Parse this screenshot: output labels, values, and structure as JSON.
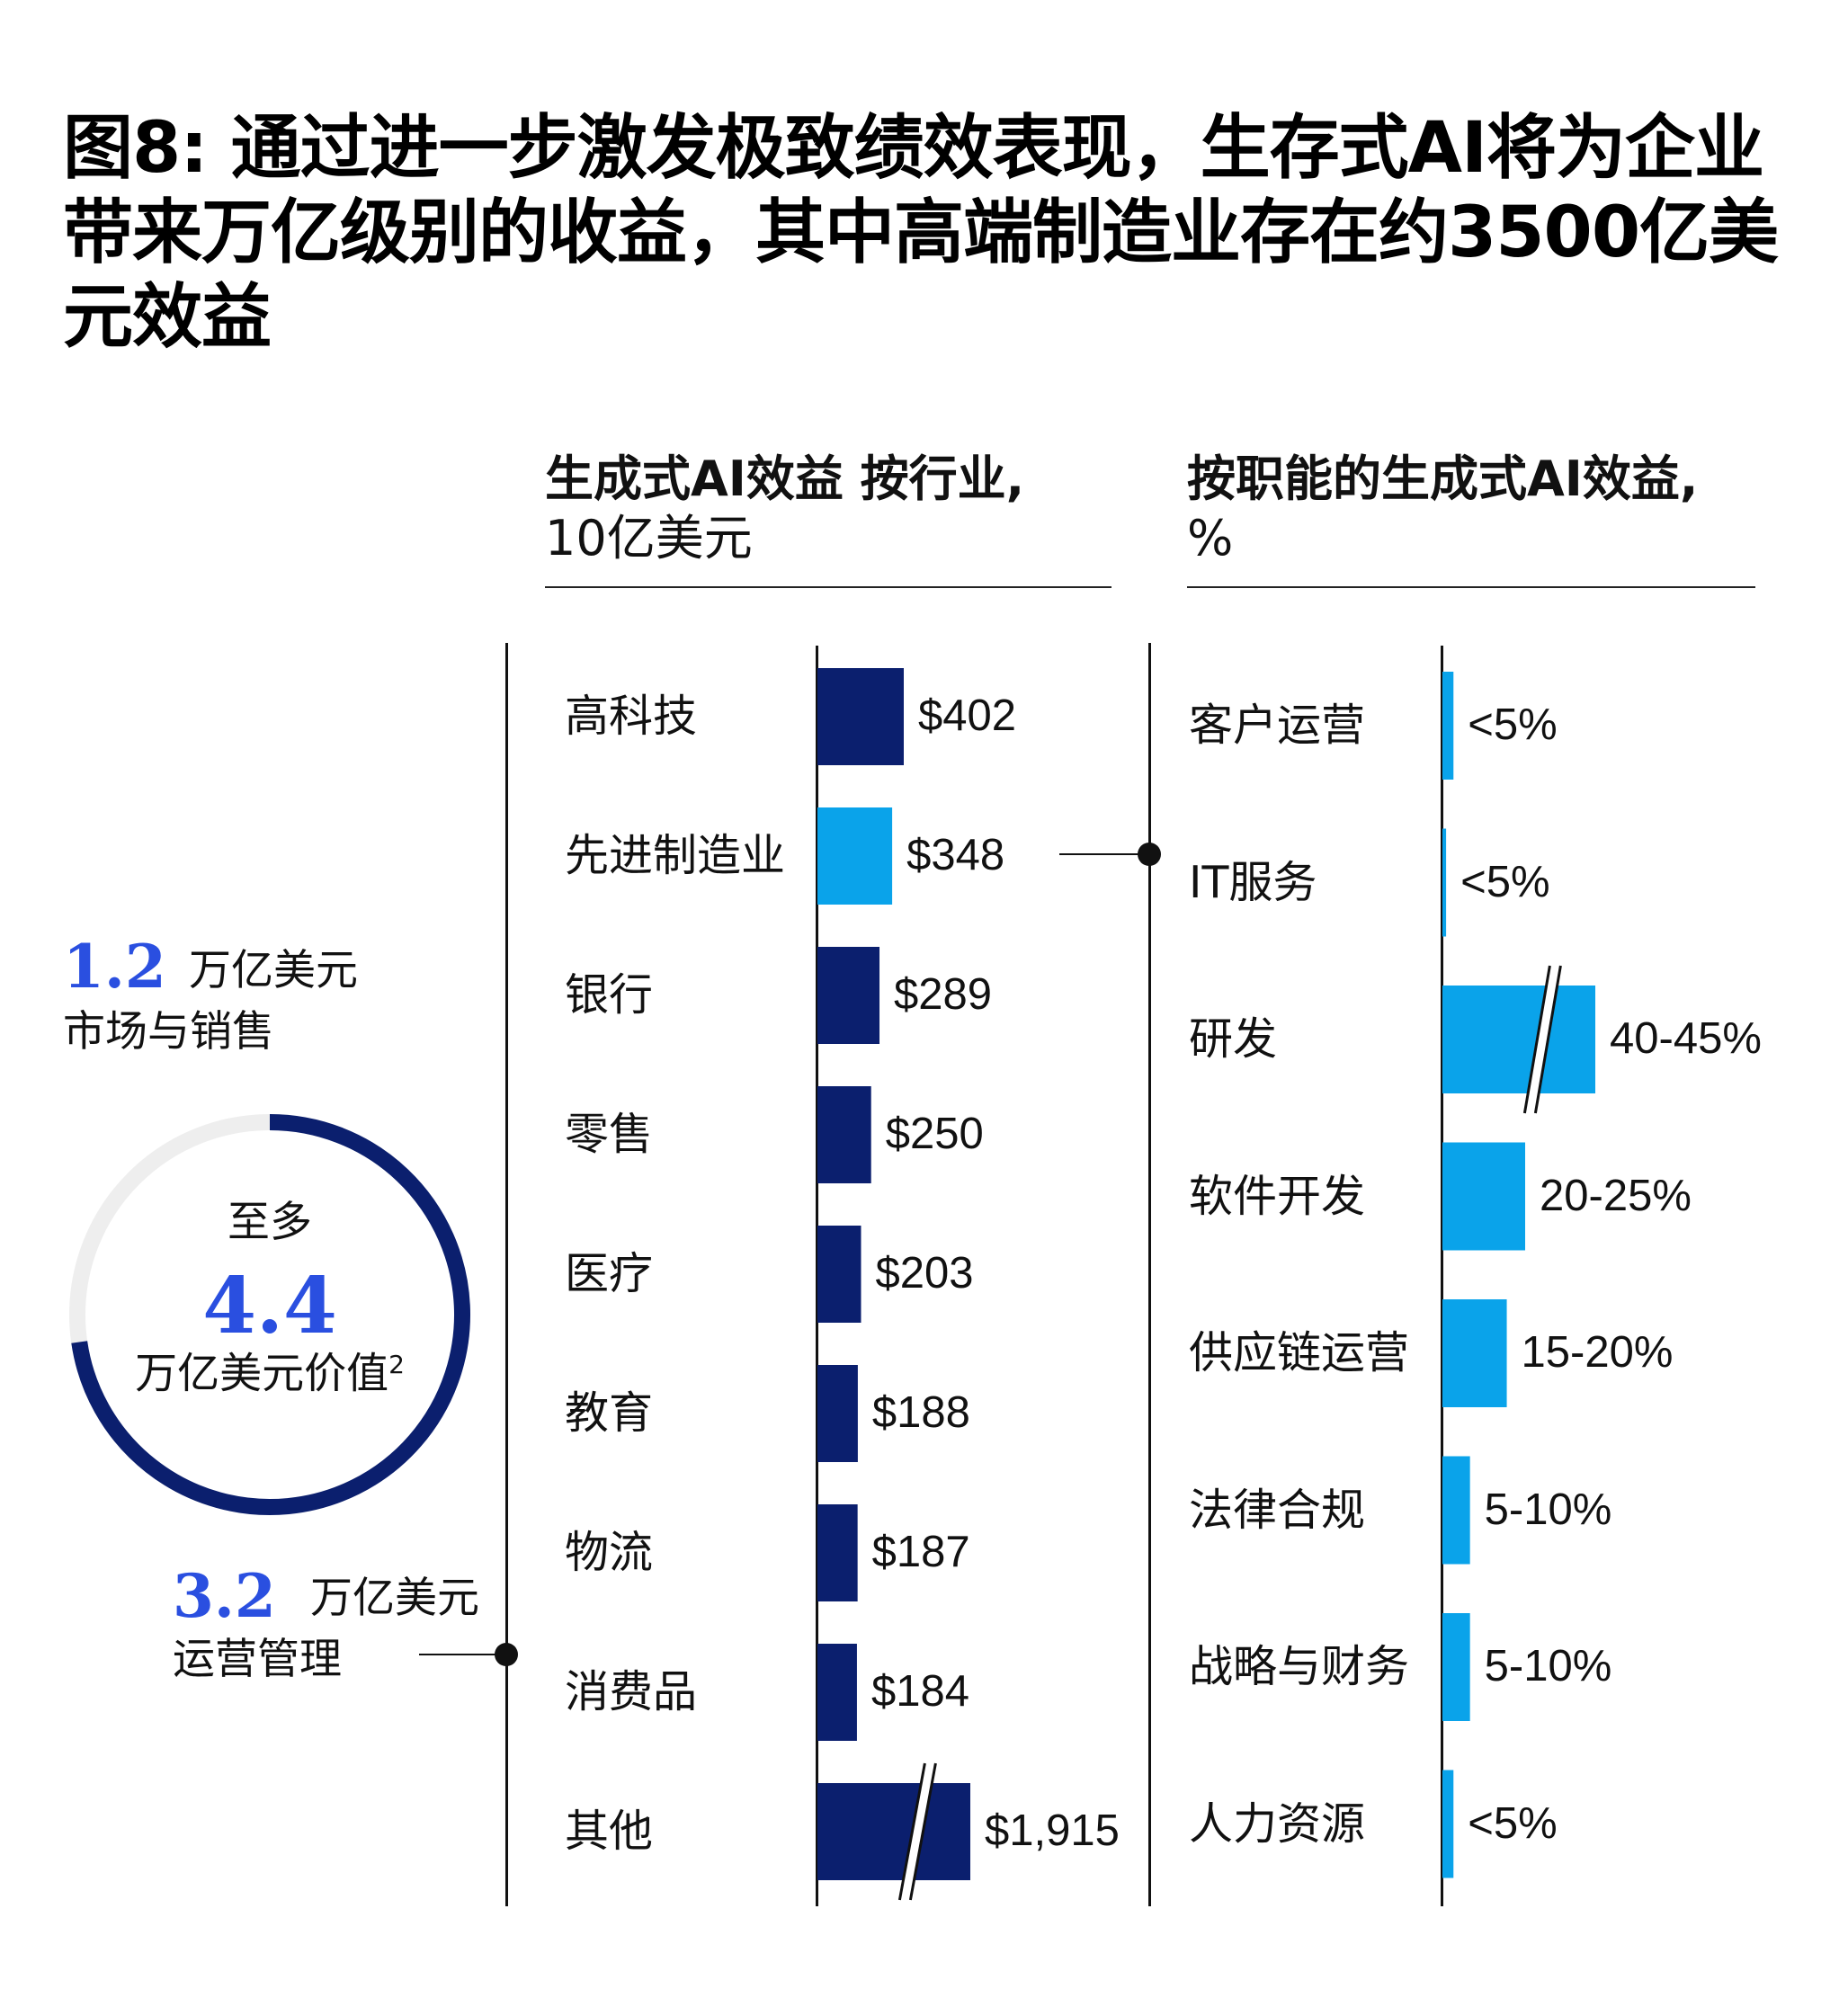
{
  "title": "图8: 通过进一步激发极致绩效表现，生存式AI将为企业带来万亿级别的收益，其中高端制造业存在约3500亿美元效益",
  "colors": {
    "navy": "#0b1f6e",
    "light_blue": "#0aa3ea",
    "accent_blue": "#2a4fe0",
    "track_gray": "#eeeeee"
  },
  "summary": {
    "segments": [
      {
        "value": "1.2",
        "unit": "万亿美元",
        "label": "市场与销售"
      },
      {
        "value": "3.2",
        "unit": "万亿美元",
        "label": "运营管理"
      }
    ],
    "total": {
      "prefix": "至多",
      "value": "4.4",
      "unit": "万亿美元价值",
      "footnote": "2"
    }
  },
  "chart_data": [
    {
      "type": "bar",
      "orientation": "horizontal",
      "title": "生成式AI效益 按行业,",
      "subtitle": "10亿美元",
      "categories": [
        "高科技",
        "先进制造业",
        "银行",
        "零售",
        "医疗",
        "教育",
        "物流",
        "消费品",
        "其他"
      ],
      "values": [
        402,
        348,
        289,
        250,
        203,
        188,
        187,
        184,
        1915
      ],
      "value_labels": [
        "$402",
        "$348",
        "$289",
        "$250",
        "$203",
        "$188",
        "$187",
        "$184",
        "$1,915"
      ],
      "highlight": "先进制造业",
      "broken_bars": [
        "其他"
      ]
    },
    {
      "type": "bar",
      "orientation": "horizontal",
      "title": "按职能的生成式AI效益,",
      "subtitle": "%",
      "categories": [
        "客户运营",
        "IT服务",
        "研发",
        "软件开发",
        "供应链运营",
        "法律合规",
        "战略与财务",
        "人力资源"
      ],
      "values": [
        3,
        1,
        42.5,
        22.5,
        17.5,
        7.5,
        7.5,
        3
      ],
      "value_labels": [
        "<5%",
        "<5%",
        "40-45%",
        "20-25%",
        "15-20%",
        "5-10%",
        "5-10%",
        "<5%"
      ],
      "broken_bars": [
        "研发"
      ]
    }
  ]
}
